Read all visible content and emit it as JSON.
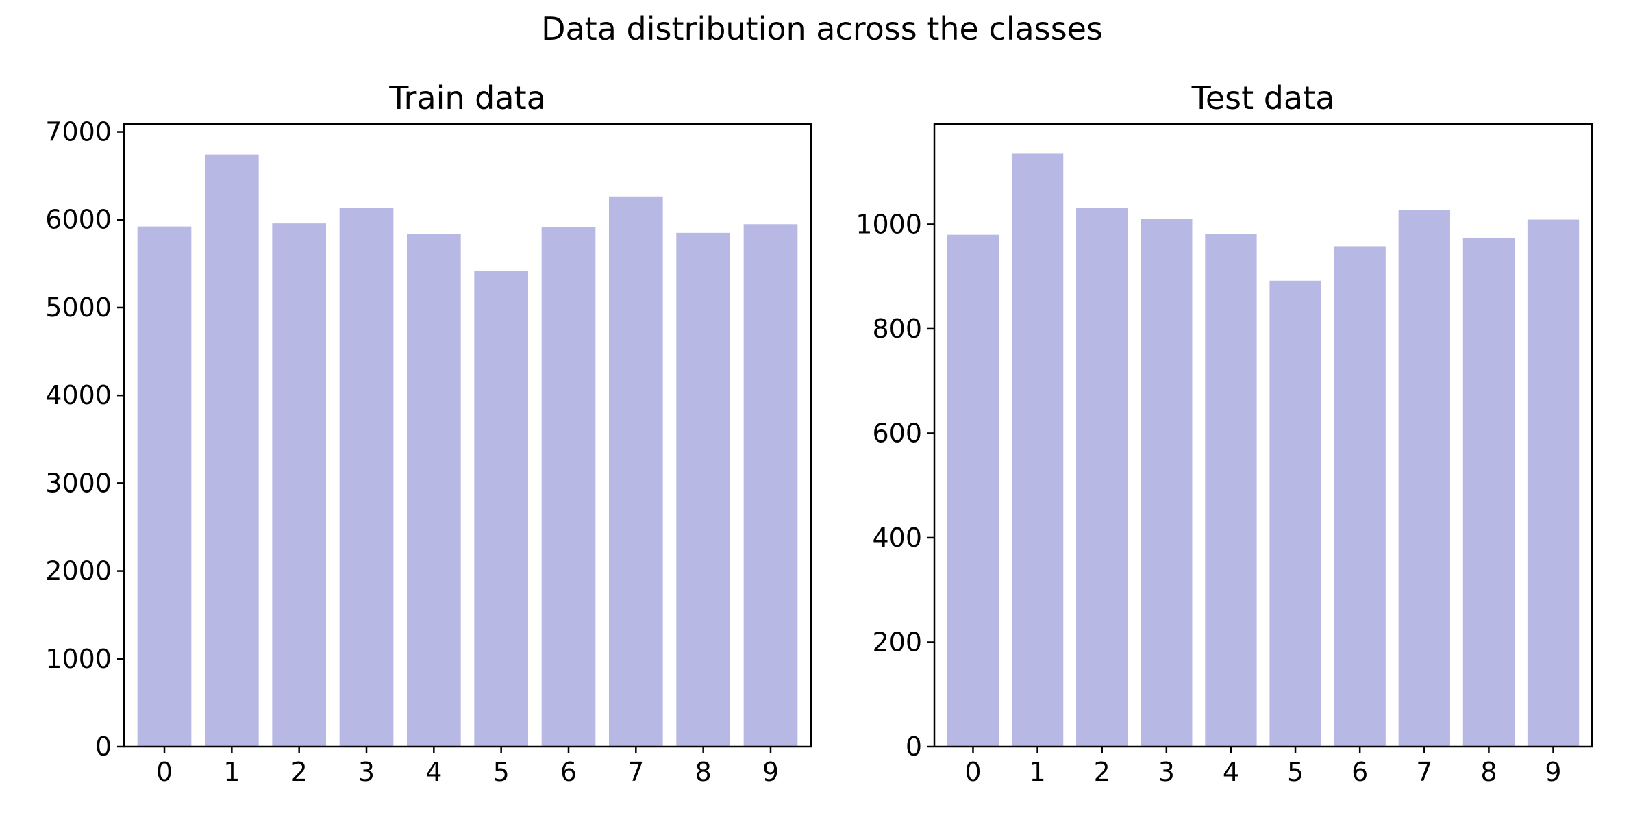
{
  "figure": {
    "title": "Data distribution across the classes"
  },
  "chart_data": [
    {
      "type": "bar",
      "title": "Train data",
      "xlabel": "",
      "ylabel": "",
      "categories": [
        "0",
        "1",
        "2",
        "3",
        "4",
        "5",
        "6",
        "7",
        "8",
        "9"
      ],
      "values": [
        5923,
        6742,
        5958,
        6131,
        5842,
        5421,
        5918,
        6265,
        5851,
        5949
      ],
      "ylim": [
        0,
        7090
      ],
      "yticks": [
        0,
        1000,
        2000,
        3000,
        4000,
        5000,
        6000,
        7000
      ],
      "bar_color": "#b7b8e4",
      "grid": false,
      "legend": "none"
    },
    {
      "type": "bar",
      "title": "Test data",
      "xlabel": "",
      "ylabel": "",
      "categories": [
        "0",
        "1",
        "2",
        "3",
        "4",
        "5",
        "6",
        "7",
        "8",
        "9"
      ],
      "values": [
        980,
        1135,
        1032,
        1010,
        982,
        892,
        958,
        1028,
        974,
        1009
      ],
      "ylim": [
        0,
        1192
      ],
      "yticks": [
        0,
        200,
        400,
        600,
        800,
        1000
      ],
      "bar_color": "#b7b8e4",
      "grid": false,
      "legend": "none"
    }
  ]
}
